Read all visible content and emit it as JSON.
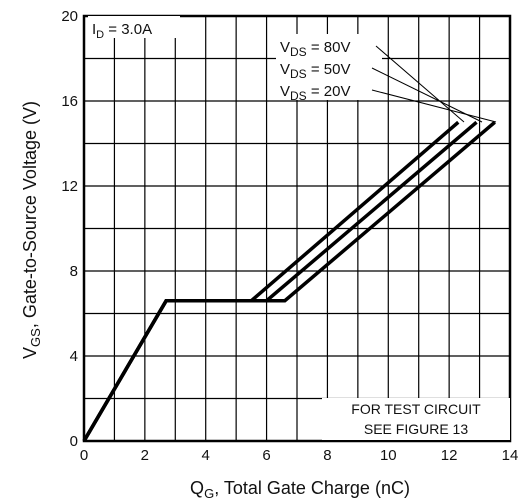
{
  "chart_data": {
    "type": "line",
    "title": "",
    "xlabel": {
      "main": "Q",
      "sub": "G",
      "rest": ", Total Gate Charge (nC)"
    },
    "ylabel": {
      "main": "V",
      "sub": "GS",
      "rest": ", Gate-to-Source Voltage (V)"
    },
    "xlim": [
      0,
      14
    ],
    "ylim": [
      0,
      20
    ],
    "x_ticks": [
      0,
      2,
      4,
      6,
      8,
      10,
      12,
      14
    ],
    "y_ticks": [
      0,
      4,
      8,
      12,
      16,
      20
    ],
    "x_minor_step": 1,
    "y_minor_step": 2,
    "grid": true,
    "condition": {
      "main": "I",
      "sub": "D",
      "rest": " = 3.0A"
    },
    "note": [
      "FOR TEST CIRCUIT",
      "SEE FIGURE 13"
    ],
    "series": [
      {
        "name": {
          "main": "V",
          "sub": "DS",
          "rest": " = 80V"
        },
        "x": [
          0,
          2.7,
          5.5,
          12.3
        ],
        "y": [
          0,
          6.6,
          6.6,
          15
        ]
      },
      {
        "name": {
          "main": "V",
          "sub": "DS",
          "rest": " = 50V"
        },
        "x": [
          0,
          2.7,
          6.0,
          12.9
        ],
        "y": [
          0,
          6.6,
          6.6,
          15
        ]
      },
      {
        "name": {
          "main": "V",
          "sub": "DS",
          "rest": " = 20V"
        },
        "x": [
          0,
          2.7,
          6.6,
          13.5
        ],
        "y": [
          0,
          6.6,
          6.6,
          15
        ]
      }
    ]
  }
}
